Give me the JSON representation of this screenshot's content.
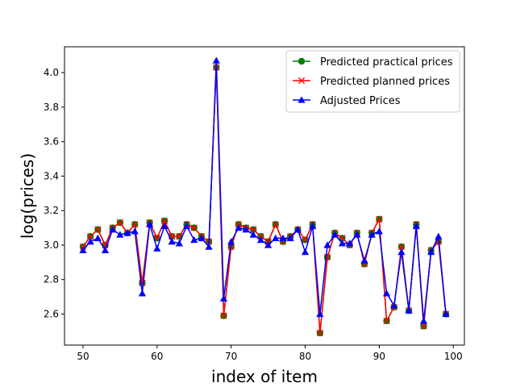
{
  "chart_data": {
    "type": "line",
    "xlabel": "index of item",
    "ylabel": "log(prices)",
    "xlim": [
      47.5,
      101.5
    ],
    "ylim": [
      2.42,
      4.15
    ],
    "x_ticks": [
      50,
      60,
      70,
      80,
      90,
      100
    ],
    "y_ticks": [
      2.6,
      2.8,
      3.0,
      3.2,
      3.4,
      3.6,
      3.8,
      4.0
    ],
    "grid": false,
    "legend_position": "top-right",
    "x": [
      50,
      51,
      52,
      53,
      54,
      55,
      56,
      57,
      58,
      59,
      60,
      61,
      62,
      63,
      64,
      65,
      66,
      67,
      68,
      69,
      70,
      71,
      72,
      73,
      74,
      75,
      76,
      77,
      78,
      79,
      80,
      81,
      82,
      83,
      84,
      85,
      86,
      87,
      88,
      89,
      90,
      91,
      92,
      93,
      94,
      95,
      96,
      97,
      98,
      99
    ],
    "series": [
      {
        "name": "Predicted practical prices",
        "color": "#008000",
        "marker": "circle",
        "values": [
          2.99,
          3.05,
          3.09,
          3.0,
          3.1,
          3.13,
          3.07,
          3.12,
          2.78,
          3.13,
          3.04,
          3.14,
          3.05,
          3.05,
          3.12,
          3.1,
          3.05,
          3.02,
          4.03,
          2.59,
          2.99,
          3.12,
          3.1,
          3.09,
          3.05,
          3.02,
          3.12,
          3.02,
          3.05,
          3.09,
          3.03,
          3.12,
          2.49,
          2.93,
          3.07,
          3.04,
          3.0,
          3.07,
          2.89,
          3.07,
          3.15,
          2.56,
          2.64,
          2.99,
          2.62,
          3.12,
          2.53,
          2.97,
          3.02,
          2.6
        ]
      },
      {
        "name": "Predicted planned prices",
        "color": "#ff0000",
        "marker": "x",
        "values": [
          2.99,
          3.05,
          3.09,
          3.0,
          3.1,
          3.13,
          3.07,
          3.12,
          2.78,
          3.13,
          3.04,
          3.14,
          3.05,
          3.05,
          3.12,
          3.1,
          3.05,
          3.02,
          4.03,
          2.59,
          2.99,
          3.12,
          3.1,
          3.09,
          3.05,
          3.02,
          3.12,
          3.02,
          3.05,
          3.09,
          3.03,
          3.12,
          2.49,
          2.93,
          3.07,
          3.04,
          3.0,
          3.07,
          2.89,
          3.07,
          3.15,
          2.56,
          2.64,
          2.99,
          2.62,
          3.12,
          2.53,
          2.97,
          3.02,
          2.6
        ]
      },
      {
        "name": "Adjusted Prices",
        "color": "#0000ff",
        "marker": "triangle",
        "values": [
          2.97,
          3.02,
          3.04,
          2.97,
          3.09,
          3.06,
          3.07,
          3.08,
          2.72,
          3.12,
          2.98,
          3.11,
          3.02,
          3.01,
          3.11,
          3.03,
          3.04,
          2.99,
          4.07,
          2.69,
          3.02,
          3.1,
          3.09,
          3.06,
          3.03,
          3.0,
          3.04,
          3.04,
          3.04,
          3.09,
          2.96,
          3.11,
          2.6,
          3.0,
          3.06,
          3.01,
          3.01,
          3.06,
          2.91,
          3.06,
          3.08,
          2.72,
          2.65,
          2.96,
          2.62,
          3.11,
          2.56,
          2.96,
          3.05,
          2.6
        ]
      }
    ]
  }
}
